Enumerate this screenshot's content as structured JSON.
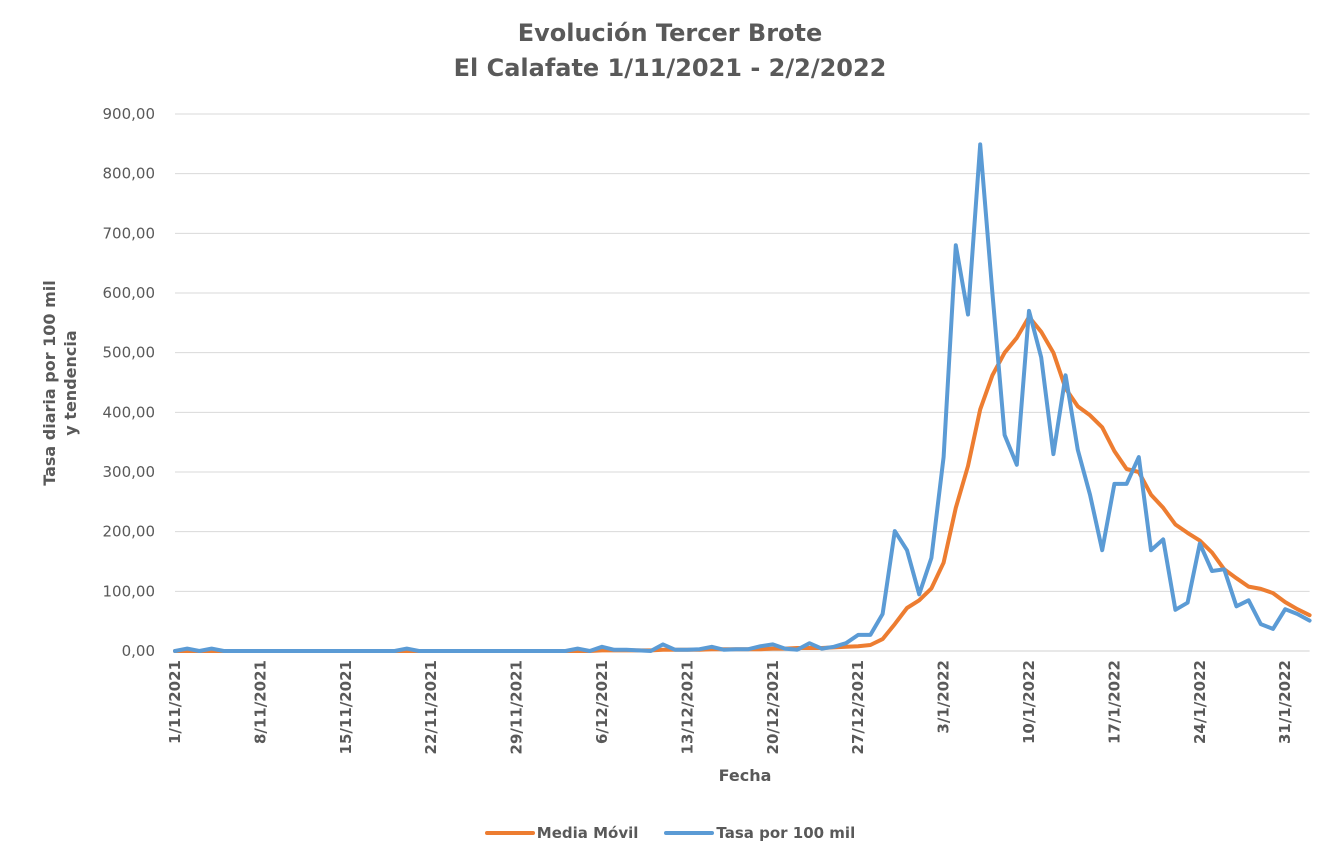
{
  "chart": {
    "title_line1": "Evolución Tercer Brote",
    "title_line2": "El Calafate 1/11/2021 - 2/2/2022",
    "ylabel_line1": "Tasa diaria por 100 mil",
    "ylabel_line2": "y tendencia",
    "xlabel": "Fecha",
    "legend": [
      {
        "label": "Media Móvil",
        "color": "#ED7D31"
      },
      {
        "label": "Tasa por 100 mil",
        "color": "#5B9BD5"
      }
    ]
  },
  "chart_data": {
    "type": "line",
    "title": "Evolución Tercer Brote\nEl Calafate 1/11/2021 - 2/2/2022",
    "xlabel": "Fecha",
    "ylabel": "Tasa diaria por 100 mil y tendencia",
    "ylim": [
      0,
      900
    ],
    "yticks": [
      "0,00",
      "100,00",
      "200,00",
      "300,00",
      "400,00",
      "500,00",
      "600,00",
      "700,00",
      "800,00",
      "900,00"
    ],
    "ytick_values": [
      0,
      100,
      200,
      300,
      400,
      500,
      600,
      700,
      800,
      900
    ],
    "x_start": "1/11/2021",
    "x_end": "2/2/2022",
    "xticks": [
      "1/11/2021",
      "8/11/2021",
      "15/11/2021",
      "22/11/2021",
      "29/11/2021",
      "6/12/2021",
      "13/12/2021",
      "20/12/2021",
      "27/12/2021",
      "3/1/2022",
      "10/1/2022",
      "17/1/2022",
      "24/1/2022",
      "31/1/2022"
    ],
    "xtick_days": [
      0,
      7,
      14,
      21,
      28,
      35,
      42,
      49,
      56,
      63,
      70,
      77,
      84,
      91
    ],
    "grid": true,
    "legend_position": "bottom",
    "series": [
      {
        "name": "Media Móvil",
        "color": "#ED7D31",
        "values": [
          0,
          0,
          0,
          0,
          0,
          0,
          0,
          0,
          0,
          0,
          0,
          0,
          0,
          0,
          0,
          0,
          0,
          0,
          0,
          0,
          0,
          0,
          0,
          0,
          0,
          0,
          0,
          0,
          0,
          0,
          0,
          0,
          0,
          0,
          0,
          1,
          1,
          1,
          1,
          1,
          2,
          2,
          2,
          2,
          3,
          3,
          3,
          3,
          3,
          4,
          4,
          5,
          5,
          5,
          6,
          7,
          8,
          10,
          20,
          45,
          72,
          85,
          105,
          148,
          240,
          310,
          405,
          462,
          500,
          525,
          560,
          535,
          500,
          440,
          410,
          395,
          375,
          335,
          305,
          300,
          262,
          240,
          212,
          198,
          185,
          165,
          137,
          122,
          108,
          104,
          97,
          82,
          70,
          60
        ]
      },
      {
        "name": "Tasa por 100 mil",
        "color": "#5B9BD5",
        "values": [
          0,
          4,
          0,
          4,
          0,
          0,
          0,
          0,
          0,
          0,
          0,
          0,
          0,
          0,
          0,
          0,
          0,
          0,
          0,
          4,
          0,
          0,
          0,
          0,
          0,
          0,
          0,
          0,
          0,
          0,
          0,
          0,
          0,
          4,
          0,
          7,
          2,
          2,
          1,
          0,
          11,
          2,
          2,
          3,
          7,
          2,
          3,
          3,
          8,
          11,
          4,
          2,
          13,
          4,
          7,
          13,
          27,
          27,
          62,
          201,
          169,
          95,
          156,
          325,
          680,
          564,
          849,
          600,
          362,
          312,
          570,
          492,
          330,
          462,
          337,
          262,
          169,
          280,
          280,
          325,
          169,
          187,
          69,
          81,
          180,
          134,
          137,
          75,
          85,
          45,
          37,
          70,
          62,
          51
        ]
      }
    ]
  }
}
